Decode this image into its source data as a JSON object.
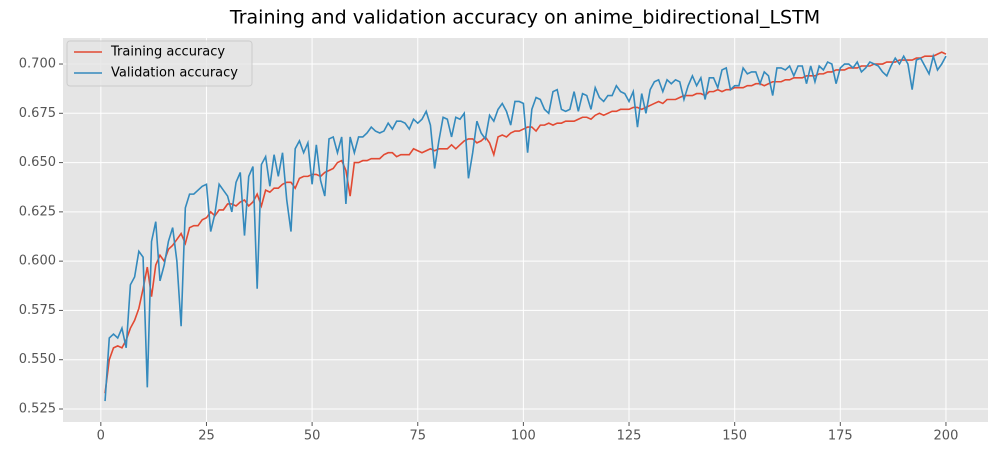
{
  "chart_data": {
    "type": "line",
    "title": "Training and validation accuracy on anime_bidirectional_LSTM",
    "x": [
      1,
      2,
      3,
      4,
      5,
      6,
      7,
      8,
      9,
      10,
      11,
      12,
      13,
      14,
      15,
      16,
      17,
      18,
      19,
      20,
      21,
      22,
      23,
      24,
      25,
      26,
      27,
      28,
      29,
      30,
      31,
      32,
      33,
      34,
      35,
      36,
      37,
      38,
      39,
      40,
      41,
      42,
      43,
      44,
      45,
      46,
      47,
      48,
      49,
      50,
      51,
      52,
      53,
      54,
      55,
      56,
      57,
      58,
      59,
      60,
      61,
      62,
      63,
      64,
      65,
      66,
      67,
      68,
      69,
      70,
      71,
      72,
      73,
      74,
      75,
      76,
      77,
      78,
      79,
      80,
      81,
      82,
      83,
      84,
      85,
      86,
      87,
      88,
      89,
      90,
      91,
      92,
      93,
      94,
      95,
      96,
      97,
      98,
      99,
      100,
      101,
      102,
      103,
      104,
      105,
      106,
      107,
      108,
      109,
      110,
      111,
      112,
      113,
      114,
      115,
      116,
      117,
      118,
      119,
      120,
      121,
      122,
      123,
      124,
      125,
      126,
      127,
      128,
      129,
      130,
      131,
      132,
      133,
      134,
      135,
      136,
      137,
      138,
      139,
      140,
      141,
      142,
      143,
      144,
      145,
      146,
      147,
      148,
      149,
      150,
      151,
      152,
      153,
      154,
      155,
      156,
      157,
      158,
      159,
      160,
      161,
      162,
      163,
      164,
      165,
      166,
      167,
      168,
      169,
      170,
      171,
      172,
      173,
      174,
      175,
      176,
      177,
      178,
      179,
      180,
      181,
      182,
      183,
      184,
      185,
      186,
      187,
      188,
      189,
      190,
      191,
      192,
      193,
      194,
      195,
      196,
      197,
      198,
      199,
      200
    ],
    "series": [
      {
        "name": "Training accuracy",
        "color": "#E24A33",
        "values": [
          0.533,
          0.55,
          0.556,
          0.557,
          0.556,
          0.56,
          0.566,
          0.57,
          0.576,
          0.586,
          0.597,
          0.582,
          0.598,
          0.603,
          0.6,
          0.606,
          0.608,
          0.611,
          0.614,
          0.609,
          0.617,
          0.618,
          0.618,
          0.621,
          0.622,
          0.625,
          0.623,
          0.626,
          0.626,
          0.629,
          0.629,
          0.628,
          0.63,
          0.631,
          0.628,
          0.63,
          0.634,
          0.628,
          0.636,
          0.635,
          0.637,
          0.637,
          0.639,
          0.64,
          0.64,
          0.637,
          0.642,
          0.643,
          0.643,
          0.644,
          0.644,
          0.643,
          0.645,
          0.646,
          0.647,
          0.65,
          0.651,
          0.646,
          0.633,
          0.65,
          0.65,
          0.651,
          0.651,
          0.652,
          0.652,
          0.652,
          0.654,
          0.655,
          0.655,
          0.653,
          0.654,
          0.654,
          0.654,
          0.657,
          0.656,
          0.655,
          0.656,
          0.657,
          0.656,
          0.657,
          0.657,
          0.657,
          0.659,
          0.657,
          0.659,
          0.661,
          0.662,
          0.662,
          0.66,
          0.661,
          0.663,
          0.66,
          0.654,
          0.663,
          0.664,
          0.663,
          0.665,
          0.666,
          0.666,
          0.667,
          0.668,
          0.668,
          0.666,
          0.669,
          0.669,
          0.67,
          0.669,
          0.67,
          0.67,
          0.671,
          0.671,
          0.671,
          0.672,
          0.673,
          0.673,
          0.672,
          0.674,
          0.675,
          0.674,
          0.675,
          0.676,
          0.676,
          0.677,
          0.677,
          0.677,
          0.678,
          0.678,
          0.677,
          0.678,
          0.679,
          0.68,
          0.681,
          0.68,
          0.682,
          0.682,
          0.682,
          0.683,
          0.684,
          0.684,
          0.684,
          0.685,
          0.685,
          0.684,
          0.686,
          0.686,
          0.687,
          0.686,
          0.687,
          0.687,
          0.688,
          0.688,
          0.688,
          0.689,
          0.689,
          0.69,
          0.69,
          0.689,
          0.69,
          0.691,
          0.691,
          0.691,
          0.692,
          0.692,
          0.693,
          0.693,
          0.693,
          0.694,
          0.694,
          0.694,
          0.695,
          0.695,
          0.696,
          0.696,
          0.697,
          0.697,
          0.697,
          0.698,
          0.698,
          0.698,
          0.699,
          0.699,
          0.699,
          0.7,
          0.7,
          0.7,
          0.701,
          0.701,
          0.701,
          0.702,
          0.702,
          0.702,
          0.702,
          0.703,
          0.703,
          0.704,
          0.704,
          0.704,
          0.705,
          0.706,
          0.705
        ]
      },
      {
        "name": "Validation accuracy",
        "color": "#348ABD",
        "values": [
          0.529,
          0.561,
          0.563,
          0.561,
          0.566,
          0.556,
          0.588,
          0.592,
          0.605,
          0.602,
          0.536,
          0.61,
          0.62,
          0.59,
          0.598,
          0.61,
          0.617,
          0.6,
          0.567,
          0.627,
          0.634,
          0.634,
          0.636,
          0.638,
          0.639,
          0.615,
          0.624,
          0.639,
          0.636,
          0.633,
          0.625,
          0.64,
          0.645,
          0.613,
          0.643,
          0.648,
          0.586,
          0.649,
          0.653,
          0.638,
          0.654,
          0.643,
          0.655,
          0.631,
          0.615,
          0.657,
          0.661,
          0.655,
          0.66,
          0.639,
          0.659,
          0.641,
          0.633,
          0.662,
          0.663,
          0.655,
          0.663,
          0.629,
          0.663,
          0.655,
          0.663,
          0.663,
          0.665,
          0.668,
          0.666,
          0.665,
          0.666,
          0.67,
          0.667,
          0.671,
          0.671,
          0.67,
          0.667,
          0.672,
          0.67,
          0.672,
          0.676,
          0.669,
          0.647,
          0.661,
          0.673,
          0.672,
          0.663,
          0.673,
          0.672,
          0.675,
          0.642,
          0.655,
          0.671,
          0.665,
          0.662,
          0.674,
          0.671,
          0.677,
          0.68,
          0.676,
          0.669,
          0.681,
          0.681,
          0.68,
          0.655,
          0.677,
          0.683,
          0.682,
          0.677,
          0.675,
          0.686,
          0.687,
          0.677,
          0.676,
          0.677,
          0.686,
          0.676,
          0.685,
          0.684,
          0.677,
          0.688,
          0.683,
          0.681,
          0.684,
          0.684,
          0.689,
          0.686,
          0.685,
          0.681,
          0.686,
          0.668,
          0.685,
          0.675,
          0.687,
          0.691,
          0.692,
          0.686,
          0.692,
          0.69,
          0.692,
          0.691,
          0.682,
          0.689,
          0.694,
          0.689,
          0.693,
          0.682,
          0.693,
          0.693,
          0.688,
          0.697,
          0.698,
          0.687,
          0.689,
          0.689,
          0.698,
          0.695,
          0.696,
          0.696,
          0.69,
          0.696,
          0.694,
          0.684,
          0.698,
          0.698,
          0.697,
          0.699,
          0.694,
          0.699,
          0.699,
          0.69,
          0.699,
          0.691,
          0.699,
          0.697,
          0.701,
          0.7,
          0.69,
          0.698,
          0.7,
          0.7,
          0.698,
          0.701,
          0.696,
          0.698,
          0.701,
          0.7,
          0.699,
          0.696,
          0.694,
          0.699,
          0.703,
          0.7,
          0.704,
          0.7,
          0.687,
          0.702,
          0.703,
          0.699,
          0.695,
          0.704,
          0.697,
          0.7,
          0.704
        ]
      }
    ],
    "xlim": [
      -8.95,
      209.95
    ],
    "ylim": [
      0.5184,
      0.7132
    ],
    "xticks": [
      0,
      25,
      50,
      75,
      100,
      125,
      150,
      175,
      200
    ],
    "yticks": [
      0.525,
      {
        "value": 0.55,
        "label": "0.550"
      },
      0.575,
      {
        "value": 0.6,
        "label": "0.600"
      },
      0.625,
      {
        "value": 0.65,
        "label": "0.650"
      },
      0.675,
      {
        "value": 0.7,
        "label": "0.700"
      }
    ],
    "grid": true,
    "legend": "upper left"
  }
}
